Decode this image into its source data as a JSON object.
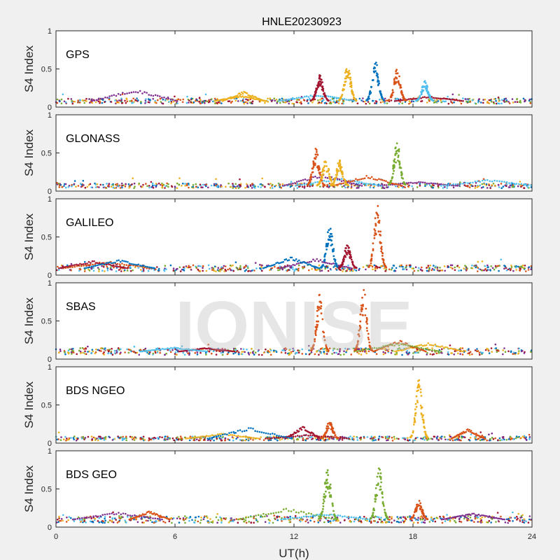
{
  "chart_data": {
    "type": "scatter",
    "title": "HNLE20230923",
    "xlabel": "UT(h)",
    "ylabel": "S4 Index",
    "xlim": [
      0,
      24
    ],
    "ylim": [
      0,
      1
    ],
    "xticks": [
      "0",
      "6",
      "12",
      "18",
      "24"
    ],
    "yticks": [
      "0",
      "0.5",
      "1"
    ],
    "watermark": "IONISE",
    "colors": [
      "#0072bd",
      "#d95319",
      "#edb120",
      "#7e2f8e",
      "#77ac30",
      "#4dbeee",
      "#a2142f"
    ],
    "panels": [
      {
        "label": "GPS",
        "baseline": 0.08,
        "bursts": [
          {
            "t": 13.3,
            "peak": 0.43,
            "color": 6
          },
          {
            "t": 14.7,
            "peak": 0.57,
            "color": 2
          },
          {
            "t": 16.1,
            "peak": 0.62,
            "color": 0
          },
          {
            "t": 17.2,
            "peak": 0.52,
            "color": 1
          },
          {
            "t": 18.6,
            "peak": 0.35,
            "color": 5
          }
        ]
      },
      {
        "label": "GLONASS",
        "baseline": 0.07,
        "bursts": [
          {
            "t": 13.1,
            "peak": 0.56,
            "color": 1
          },
          {
            "t": 13.6,
            "peak": 0.42,
            "color": 2
          },
          {
            "t": 14.3,
            "peak": 0.41,
            "color": 2
          },
          {
            "t": 17.2,
            "peak": 0.66,
            "color": 4
          }
        ]
      },
      {
        "label": "GALILEO",
        "baseline": 0.09,
        "bursts": [
          {
            "t": 13.8,
            "peak": 0.67,
            "color": 0
          },
          {
            "t": 14.7,
            "peak": 0.41,
            "color": 6
          },
          {
            "t": 16.2,
            "peak": 0.93,
            "color": 1
          }
        ]
      },
      {
        "label": "SBAS",
        "baseline": 0.1,
        "bursts": [
          {
            "t": 13.3,
            "peak": 0.86,
            "color": 1
          },
          {
            "t": 15.5,
            "peak": 0.95,
            "color": 1
          }
        ]
      },
      {
        "label": "BDS NGEO",
        "baseline": 0.06,
        "bursts": [
          {
            "t": 13.8,
            "peak": 0.3,
            "color": 1
          },
          {
            "t": 18.3,
            "peak": 0.84,
            "color": 2
          }
        ]
      },
      {
        "label": "BDS GEO",
        "baseline": 0.1,
        "bursts": [
          {
            "t": 13.7,
            "peak": 0.78,
            "color": 4
          },
          {
            "t": 16.3,
            "peak": 0.82,
            "color": 4
          },
          {
            "t": 18.3,
            "peak": 0.35,
            "color": 1
          }
        ]
      }
    ]
  }
}
